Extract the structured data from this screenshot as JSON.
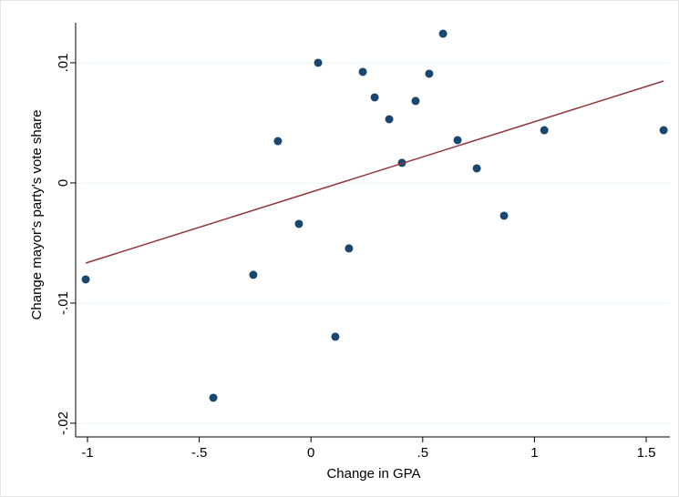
{
  "chart_data": {
    "type": "scatter",
    "xlabel": "Change in GPA",
    "ylabel": "Change mayor's party's vote share",
    "xlim": [
      -1.053,
      1.606
    ],
    "ylim": [
      -0.02114,
      0.01333
    ],
    "xticks": [
      -1,
      {
        "value": -0.5,
        "label": "-.5"
      },
      0,
      {
        "value": 0.5,
        "label": ".5"
      },
      1,
      1.5
    ],
    "yticks": [
      {
        "value": -0.02,
        "label": "-.02"
      },
      {
        "value": -0.01,
        "label": "-.01"
      },
      0,
      {
        "value": 0.01,
        "label": ".01"
      }
    ],
    "grid": true,
    "series": [
      {
        "type": "scatter",
        "color": "#1a476f",
        "x": [
          -1.008,
          -0.437,
          -0.258,
          -0.148,
          -0.054,
          0.032,
          0.109,
          0.17,
          0.232,
          0.285,
          0.35,
          0.407,
          0.468,
          0.529,
          0.591,
          0.656,
          0.742,
          0.864,
          1.044,
          1.578
        ],
        "values": [
          -0.00803,
          -0.01788,
          -0.00765,
          0.00348,
          -0.00341,
          0.01,
          -0.0128,
          -0.00545,
          0.00924,
          0.00712,
          0.0053,
          0.00167,
          0.00682,
          0.00909,
          0.01242,
          0.00356,
          0.00121,
          -0.00273,
          0.00439,
          0.00439
        ]
      },
      {
        "type": "line",
        "color": "#90353b",
        "x": [
          -1.008,
          1.578
        ],
        "values": [
          -0.00667,
          0.00848
        ]
      }
    ]
  }
}
